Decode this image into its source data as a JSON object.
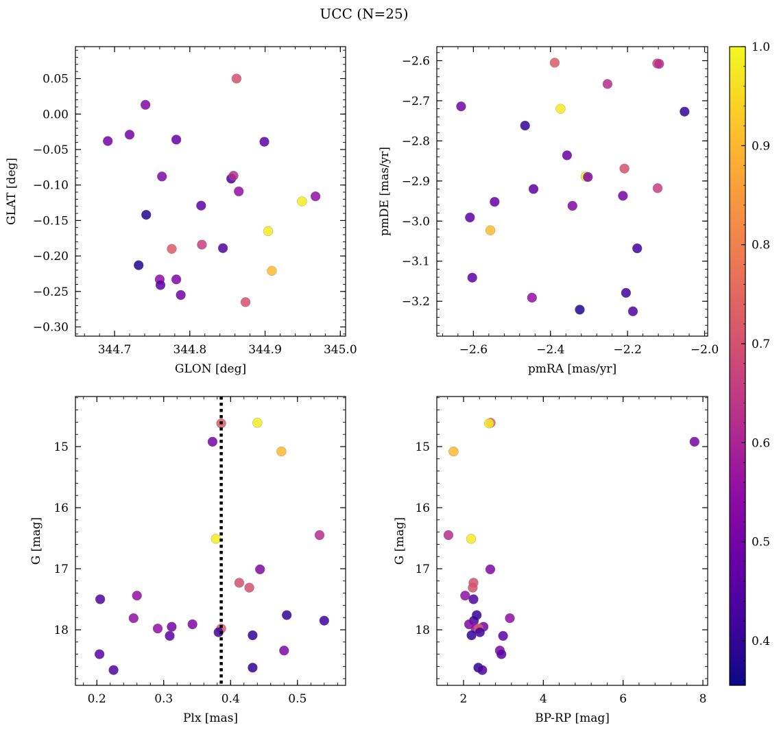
{
  "figure": {
    "title": "UCC (N=25)"
  },
  "colorbar": {
    "colormap": "plasma",
    "range": [
      0.355,
      1.0
    ],
    "ticks": [
      0.4,
      0.5,
      0.6,
      0.7,
      0.8,
      0.9,
      1.0
    ],
    "tick_labels": [
      "0.4",
      "0.5",
      "0.6",
      "0.7",
      "0.8",
      "0.9",
      "1.0"
    ]
  },
  "chart_data": [
    {
      "type": "scatter",
      "id": "glon-glat",
      "xlabel": "GLON [deg]",
      "ylabel": "GLAT [deg]",
      "xlim": [
        344.648,
        345.007
      ],
      "ylim": [
        -0.313,
        0.095
      ],
      "xticks": [
        344.7,
        344.8,
        344.9,
        345.0
      ],
      "xtick_labels": [
        "344.7",
        "344.8",
        "344.9",
        "345.0"
      ],
      "yticks": [
        0.05,
        0.0,
        -0.05,
        -0.1,
        -0.15,
        -0.2,
        -0.25,
        -0.3
      ],
      "ytick_labels": [
        "0.05",
        "0.00",
        "−0.05",
        "−0.10",
        "−0.15",
        "−0.20",
        "−0.25",
        "−0.30"
      ],
      "grid": false,
      "points": [
        {
          "x": 344.862,
          "y": 0.05,
          "c": 0.7
        },
        {
          "x": 344.741,
          "y": 0.013,
          "c": 0.52
        },
        {
          "x": 344.691,
          "y": -0.038,
          "c": 0.5
        },
        {
          "x": 344.72,
          "y": -0.029,
          "c": 0.5
        },
        {
          "x": 344.782,
          "y": -0.036,
          "c": 0.48
        },
        {
          "x": 344.899,
          "y": -0.039,
          "c": 0.46
        },
        {
          "x": 344.763,
          "y": -0.088,
          "c": 0.52
        },
        {
          "x": 344.855,
          "y": -0.091,
          "c": 0.42
        },
        {
          "x": 344.858,
          "y": -0.087,
          "c": 0.62
        },
        {
          "x": 344.865,
          "y": -0.109,
          "c": 0.55
        },
        {
          "x": 344.949,
          "y": -0.123,
          "c": 0.98
        },
        {
          "x": 344.967,
          "y": -0.116,
          "c": 0.55
        },
        {
          "x": 344.815,
          "y": -0.129,
          "c": 0.46
        },
        {
          "x": 344.742,
          "y": -0.142,
          "c": 0.38
        },
        {
          "x": 344.904,
          "y": -0.165,
          "c": 0.98
        },
        {
          "x": 344.776,
          "y": -0.19,
          "c": 0.72
        },
        {
          "x": 344.816,
          "y": -0.184,
          "c": 0.66
        },
        {
          "x": 344.844,
          "y": -0.189,
          "c": 0.44
        },
        {
          "x": 344.732,
          "y": -0.213,
          "c": 0.38
        },
        {
          "x": 344.909,
          "y": -0.221,
          "c": 0.9
        },
        {
          "x": 344.76,
          "y": -0.233,
          "c": 0.55
        },
        {
          "x": 344.782,
          "y": -0.233,
          "c": 0.52
        },
        {
          "x": 344.761,
          "y": -0.241,
          "c": 0.46
        },
        {
          "x": 344.788,
          "y": -0.255,
          "c": 0.5
        },
        {
          "x": 344.874,
          "y": -0.265,
          "c": 0.7
        }
      ]
    },
    {
      "type": "scatter",
      "id": "pmra-pmde",
      "xlabel": "pmRA [mas/yr]",
      "ylabel": "pmDE [mas/yr]",
      "xlim": [
        -2.695,
        -1.992
      ],
      "ylim": [
        -3.287,
        -2.565
      ],
      "xticks": [
        -2.6,
        -2.4,
        -2.2,
        -2.0
      ],
      "xtick_labels": [
        "−2.6",
        "−2.4",
        "−2.2",
        "−2.0"
      ],
      "yticks": [
        -2.6,
        -2.7,
        -2.8,
        -2.9,
        -3.0,
        -3.1,
        -3.2
      ],
      "ytick_labels": [
        "−2.6",
        "−2.7",
        "−2.8",
        "−2.9",
        "−3.0",
        "−3.1",
        "−3.2"
      ],
      "grid": false,
      "points": [
        {
          "x": -2.389,
          "y": -2.605,
          "c": 0.72
        },
        {
          "x": -2.123,
          "y": -2.607,
          "c": 0.68
        },
        {
          "x": -2.118,
          "y": -2.608,
          "c": 0.62
        },
        {
          "x": -2.252,
          "y": -2.658,
          "c": 0.62
        },
        {
          "x": -2.632,
          "y": -2.714,
          "c": 0.5
        },
        {
          "x": -2.374,
          "y": -2.72,
          "c": 0.98
        },
        {
          "x": -2.466,
          "y": -2.762,
          "c": 0.4
        },
        {
          "x": -2.052,
          "y": -2.727,
          "c": 0.4
        },
        {
          "x": -2.357,
          "y": -2.836,
          "c": 0.48
        },
        {
          "x": -2.208,
          "y": -2.869,
          "c": 0.7
        },
        {
          "x": -2.309,
          "y": -2.889,
          "c": 0.98
        },
        {
          "x": -2.303,
          "y": -2.89,
          "c": 0.52
        },
        {
          "x": -2.444,
          "y": -2.92,
          "c": 0.46
        },
        {
          "x": -2.212,
          "y": -2.937,
          "c": 0.5
        },
        {
          "x": -2.122,
          "y": -2.918,
          "c": 0.66
        },
        {
          "x": -2.545,
          "y": -2.952,
          "c": 0.48
        },
        {
          "x": -2.343,
          "y": -2.962,
          "c": 0.52
        },
        {
          "x": -2.609,
          "y": -2.991,
          "c": 0.46
        },
        {
          "x": -2.556,
          "y": -3.023,
          "c": 0.9
        },
        {
          "x": -2.175,
          "y": -3.068,
          "c": 0.42
        },
        {
          "x": -2.603,
          "y": -3.141,
          "c": 0.46
        },
        {
          "x": -2.448,
          "y": -3.191,
          "c": 0.55
        },
        {
          "x": -2.204,
          "y": -3.179,
          "c": 0.42
        },
        {
          "x": -2.324,
          "y": -3.221,
          "c": 0.38
        },
        {
          "x": -2.186,
          "y": -3.225,
          "c": 0.44
        }
      ]
    },
    {
      "type": "scatter",
      "id": "plx-g",
      "xlabel": "Plx [mas]",
      "ylabel": "G [mag]",
      "xlim": [
        0.168,
        0.572
      ],
      "ylim": [
        18.91,
        14.18
      ],
      "y_inverted": true,
      "xticks": [
        0.2,
        0.3,
        0.4,
        0.5
      ],
      "xtick_labels": [
        "0.2",
        "0.3",
        "0.4",
        "0.5"
      ],
      "yticks": [
        15,
        16,
        17,
        18
      ],
      "ytick_labels": [
        "15",
        "16",
        "17",
        "18"
      ],
      "grid": false,
      "vline": {
        "x": 0.386,
        "style": "dotted"
      },
      "points": [
        {
          "x": 0.44,
          "y": 14.61,
          "c": 0.98
        },
        {
          "x": 0.386,
          "y": 14.62,
          "c": 0.72
        },
        {
          "x": 0.373,
          "y": 14.92,
          "c": 0.5
        },
        {
          "x": 0.476,
          "y": 15.08,
          "c": 0.9
        },
        {
          "x": 0.378,
          "y": 16.51,
          "c": 0.98
        },
        {
          "x": 0.533,
          "y": 16.45,
          "c": 0.62
        },
        {
          "x": 0.444,
          "y": 17.01,
          "c": 0.52
        },
        {
          "x": 0.413,
          "y": 17.23,
          "c": 0.7
        },
        {
          "x": 0.428,
          "y": 17.31,
          "c": 0.7
        },
        {
          "x": 0.26,
          "y": 17.44,
          "c": 0.55
        },
        {
          "x": 0.205,
          "y": 17.5,
          "c": 0.44
        },
        {
          "x": 0.255,
          "y": 17.81,
          "c": 0.55
        },
        {
          "x": 0.484,
          "y": 17.76,
          "c": 0.4
        },
        {
          "x": 0.54,
          "y": 17.85,
          "c": 0.42
        },
        {
          "x": 0.343,
          "y": 17.91,
          "c": 0.52
        },
        {
          "x": 0.312,
          "y": 17.95,
          "c": 0.5
        },
        {
          "x": 0.291,
          "y": 17.98,
          "c": 0.55
        },
        {
          "x": 0.386,
          "y": 17.98,
          "c": 0.72
        },
        {
          "x": 0.382,
          "y": 18.04,
          "c": 0.42
        },
        {
          "x": 0.433,
          "y": 18.09,
          "c": 0.4
        },
        {
          "x": 0.309,
          "y": 18.1,
          "c": 0.46
        },
        {
          "x": 0.48,
          "y": 18.34,
          "c": 0.52
        },
        {
          "x": 0.204,
          "y": 18.4,
          "c": 0.46
        },
        {
          "x": 0.433,
          "y": 18.62,
          "c": 0.4
        },
        {
          "x": 0.225,
          "y": 18.66,
          "c": 0.44
        }
      ]
    },
    {
      "type": "scatter",
      "id": "bprp-g",
      "xlabel": "BP-RP [mag]",
      "ylabel": "G [mag]",
      "xlim": [
        1.33,
        8.12
      ],
      "ylim": [
        18.91,
        14.18
      ],
      "y_inverted": true,
      "xticks": [
        2,
        4,
        6,
        8
      ],
      "xtick_labels": [
        "2",
        "4",
        "6",
        "8"
      ],
      "yticks": [
        15,
        16,
        17,
        18
      ],
      "ytick_labels": [
        "15",
        "16",
        "17",
        "18"
      ],
      "grid": false,
      "points": [
        {
          "x": 2.68,
          "y": 14.61,
          "c": 0.72
        },
        {
          "x": 2.64,
          "y": 14.62,
          "c": 0.98
        },
        {
          "x": 7.79,
          "y": 14.92,
          "c": 0.5
        },
        {
          "x": 1.75,
          "y": 15.08,
          "c": 0.9
        },
        {
          "x": 1.62,
          "y": 16.45,
          "c": 0.62
        },
        {
          "x": 2.19,
          "y": 16.51,
          "c": 0.98
        },
        {
          "x": 2.67,
          "y": 17.01,
          "c": 0.52
        },
        {
          "x": 2.25,
          "y": 17.23,
          "c": 0.7
        },
        {
          "x": 2.23,
          "y": 17.31,
          "c": 0.7
        },
        {
          "x": 2.04,
          "y": 17.44,
          "c": 0.55
        },
        {
          "x": 2.25,
          "y": 17.5,
          "c": 0.44
        },
        {
          "x": 2.33,
          "y": 17.76,
          "c": 0.4
        },
        {
          "x": 3.16,
          "y": 17.81,
          "c": 0.55
        },
        {
          "x": 2.26,
          "y": 17.85,
          "c": 0.42
        },
        {
          "x": 2.14,
          "y": 17.91,
          "c": 0.52
        },
        {
          "x": 2.5,
          "y": 17.95,
          "c": 0.5
        },
        {
          "x": 2.3,
          "y": 17.98,
          "c": 0.55
        },
        {
          "x": 2.38,
          "y": 17.98,
          "c": 0.72
        },
        {
          "x": 2.41,
          "y": 18.04,
          "c": 0.42
        },
        {
          "x": 2.2,
          "y": 18.09,
          "c": 0.4
        },
        {
          "x": 2.99,
          "y": 18.1,
          "c": 0.46
        },
        {
          "x": 2.91,
          "y": 18.34,
          "c": 0.52
        },
        {
          "x": 2.95,
          "y": 18.4,
          "c": 0.46
        },
        {
          "x": 2.37,
          "y": 18.62,
          "c": 0.4
        },
        {
          "x": 2.47,
          "y": 18.66,
          "c": 0.44
        }
      ]
    }
  ]
}
